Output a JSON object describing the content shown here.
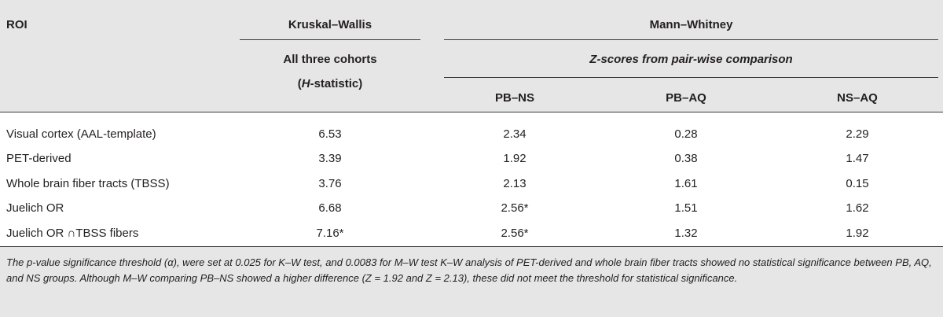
{
  "header": {
    "roi": "ROI",
    "kruskal_wallis": "Kruskal–Wallis",
    "mann_whitney": "Mann–Whitney",
    "all_three_cohorts": "All three cohorts",
    "h_open": "(",
    "h_letter": "H",
    "h_rest": "-statistic)",
    "zscores": "Z-scores from pair-wise comparison",
    "pb_ns": "PB–NS",
    "pb_aq": "PB–AQ",
    "ns_aq": "NS–AQ"
  },
  "rows": [
    {
      "roi": "Visual cortex (AAL-template)",
      "h": "6.53",
      "pb_ns": "2.34",
      "pb_aq": "0.28",
      "ns_aq": "2.29"
    },
    {
      "roi": "PET-derived",
      "h": "3.39",
      "pb_ns": "1.92",
      "pb_aq": "0.38",
      "ns_aq": "1.47"
    },
    {
      "roi": "Whole brain fiber tracts (TBSS)",
      "h": "3.76",
      "pb_ns": "2.13",
      "pb_aq": "1.61",
      "ns_aq": "0.15"
    },
    {
      "roi": "Juelich OR",
      "h": "6.68",
      "pb_ns": "2.56*",
      "pb_aq": "1.51",
      "ns_aq": "1.62"
    },
    {
      "roi": "Juelich OR ∩TBSS fibers",
      "h": "7.16*",
      "pb_ns": "2.56*",
      "pb_aq": "1.32",
      "ns_aq": "1.92"
    }
  ],
  "footnote": "The p-value significance threshold (α), were set at 0.025 for K–W test, and 0.0083 for M–W test K–W analysis of PET-derived and whole brain fiber tracts showed no statistical significance between PB, AQ, and NS groups. Although M–W comparing PB–NS showed a higher difference (Z = 1.92 and Z = 2.13), these did not meet the threshold for statistical significance."
}
